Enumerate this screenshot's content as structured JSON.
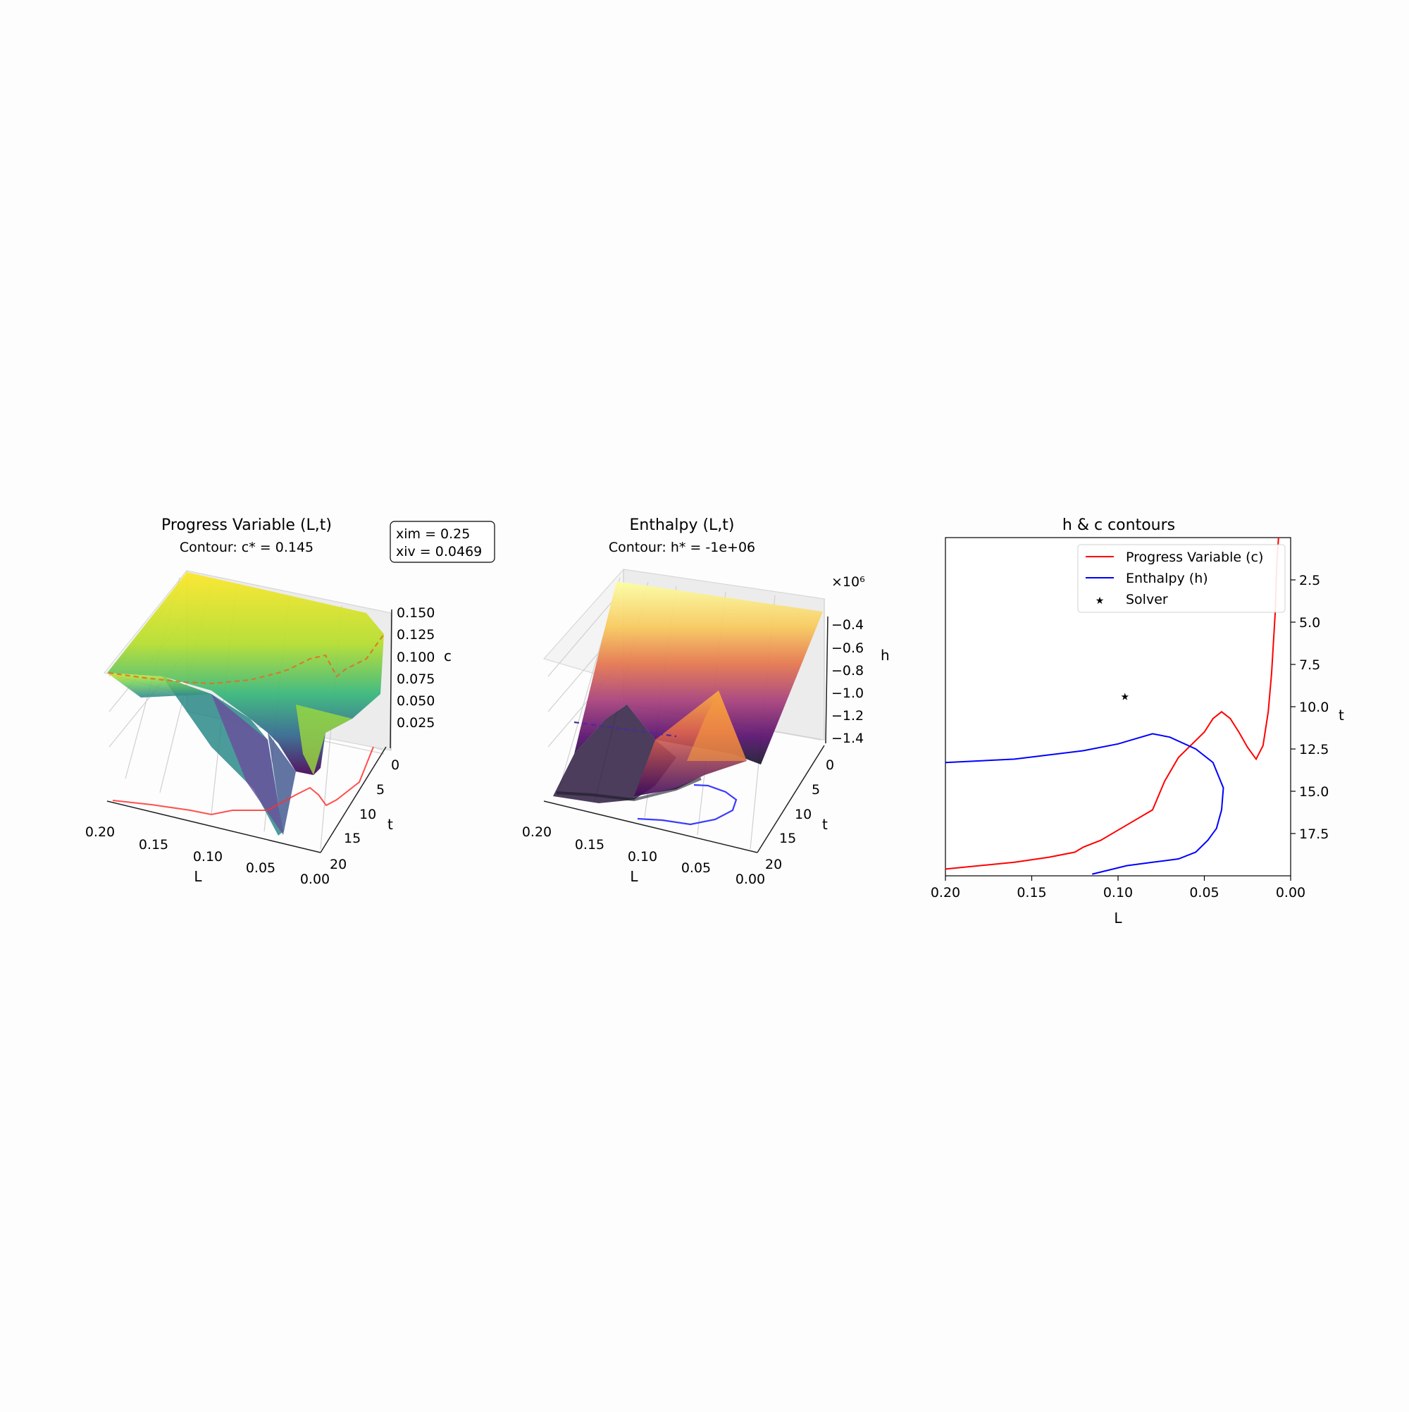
{
  "annotation": {
    "line1": "xim = 0.25",
    "line2": "xiv = 0.0469"
  },
  "panels": [
    {
      "title": "Progress Variable (L,t)",
      "subtitle": "Contour: c* = 0.145",
      "xlabel": "L",
      "ylabel": "t",
      "zlabel": "c",
      "xticks": [
        "0.20",
        "0.15",
        "0.10",
        "0.05",
        "0.00"
      ],
      "yticks": [
        "0",
        "5",
        "10",
        "15",
        "20"
      ],
      "zticks": [
        "0.025",
        "0.050",
        "0.075",
        "0.100",
        "0.125",
        "0.150"
      ]
    },
    {
      "title": "Enthalpy (L,t)",
      "subtitle": "Contour: h* = -1e+06",
      "xlabel": "L",
      "ylabel": "t",
      "zlabel": "h",
      "zscale": "×10⁶",
      "xticks": [
        "0.20",
        "0.15",
        "0.10",
        "0.05",
        "0.00"
      ],
      "yticks": [
        "0",
        "5",
        "10",
        "15",
        "20"
      ],
      "zticks": [
        "−1.4",
        "−1.2",
        "−1.0",
        "−0.8",
        "−0.6",
        "−0.4"
      ]
    }
  ],
  "chart_data": [
    {
      "type": "surface",
      "title": "Progress Variable (L,t)",
      "subtitle": "Contour: c* = 0.145",
      "xlabel": "L",
      "ylabel": "t",
      "zlabel": "c",
      "xlim": [
        0.2,
        0.0
      ],
      "ylim": [
        0,
        20
      ],
      "zlim": [
        0,
        0.16
      ],
      "colormap": "viridis"
    },
    {
      "type": "surface",
      "title": "Enthalpy (L,t)",
      "subtitle": "Contour: h* = -1e+06",
      "xlabel": "L",
      "ylabel": "t",
      "zlabel": "h",
      "xlim": [
        0.2,
        0.0
      ],
      "ylim": [
        0,
        20
      ],
      "zlim": [
        -1.45,
        -0.3
      ],
      "colormap": "inferno"
    },
    {
      "type": "line",
      "title": "h & c contours",
      "xlabel": "L",
      "ylabel": "t",
      "xlim": [
        0.2,
        0.0
      ],
      "ylim": [
        20,
        0
      ],
      "xticks": [
        "0.20",
        "0.15",
        "0.10",
        "0.05",
        "0.00"
      ],
      "yticks": [
        "2.5",
        "5.0",
        "7.5",
        "10.0",
        "12.5",
        "15.0",
        "17.5"
      ],
      "legend_position": "upper-right",
      "series": [
        {
          "name": "Progress Variable (c)",
          "color": "#ff0000",
          "x": [
            0.2,
            0.16,
            0.14,
            0.125,
            0.12,
            0.11,
            0.1,
            0.09,
            0.08,
            0.073,
            0.065,
            0.058,
            0.05,
            0.045,
            0.04,
            0.035,
            0.03,
            0.025,
            0.02,
            0.016,
            0.013,
            0.011,
            0.009,
            0.008,
            0.007
          ],
          "y": [
            19.6,
            19.2,
            18.9,
            18.6,
            18.3,
            17.9,
            17.3,
            16.7,
            16.1,
            14.4,
            13.0,
            12.3,
            11.5,
            10.7,
            10.3,
            10.7,
            11.5,
            12.4,
            13.1,
            12.3,
            10.3,
            8.0,
            4.5,
            1.5,
            0.0
          ]
        },
        {
          "name": "Enthalpy (h)",
          "color": "#0000ff",
          "x": [
            0.2,
            0.16,
            0.12,
            0.1,
            0.09,
            0.08,
            0.07,
            0.055,
            0.045,
            0.039,
            0.04,
            0.043,
            0.048,
            0.055,
            0.065,
            0.08,
            0.095,
            0.115
          ],
          "y": [
            13.3,
            13.1,
            12.6,
            12.2,
            11.9,
            11.6,
            11.8,
            12.5,
            13.3,
            14.8,
            16.1,
            17.2,
            17.9,
            18.6,
            19.0,
            19.2,
            19.4,
            19.9
          ]
        },
        {
          "name": "Solver",
          "color": "#000000",
          "marker": "star",
          "x": [
            0.096
          ],
          "y": [
            9.4
          ]
        }
      ]
    }
  ]
}
